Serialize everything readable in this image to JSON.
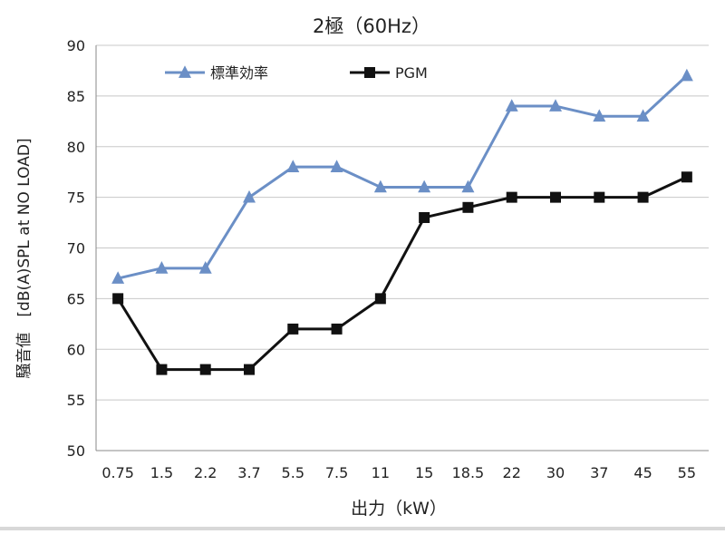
{
  "chart_data": {
    "type": "line",
    "title": "2極（60Hz）",
    "xlabel": "出力（kW）",
    "ylabel": "騒音値　[dB(A)SPL at NO LOAD]",
    "categories": [
      "0.75",
      "1.5",
      "2.2",
      "3.7",
      "5.5",
      "7.5",
      "11",
      "15",
      "18.5",
      "22",
      "30",
      "37",
      "45",
      "55"
    ],
    "yticks": [
      "50",
      "55",
      "60",
      "65",
      "70",
      "75",
      "80",
      "85",
      "90"
    ],
    "ylim": [
      50,
      90
    ],
    "grid": "horizontal",
    "legend_placement": "top-left",
    "series": [
      {
        "name": "標準効率",
        "marker": "triangle",
        "color": "#6b8fc6",
        "values": [
          67,
          68,
          68,
          75,
          78,
          78,
          76,
          76,
          76,
          84,
          84,
          83,
          83,
          87
        ]
      },
      {
        "name": "PGM",
        "marker": "square",
        "color": "#111111",
        "values": [
          65,
          58,
          58,
          58,
          62,
          62,
          65,
          73,
          74,
          75,
          75,
          75,
          75,
          77
        ]
      }
    ]
  }
}
